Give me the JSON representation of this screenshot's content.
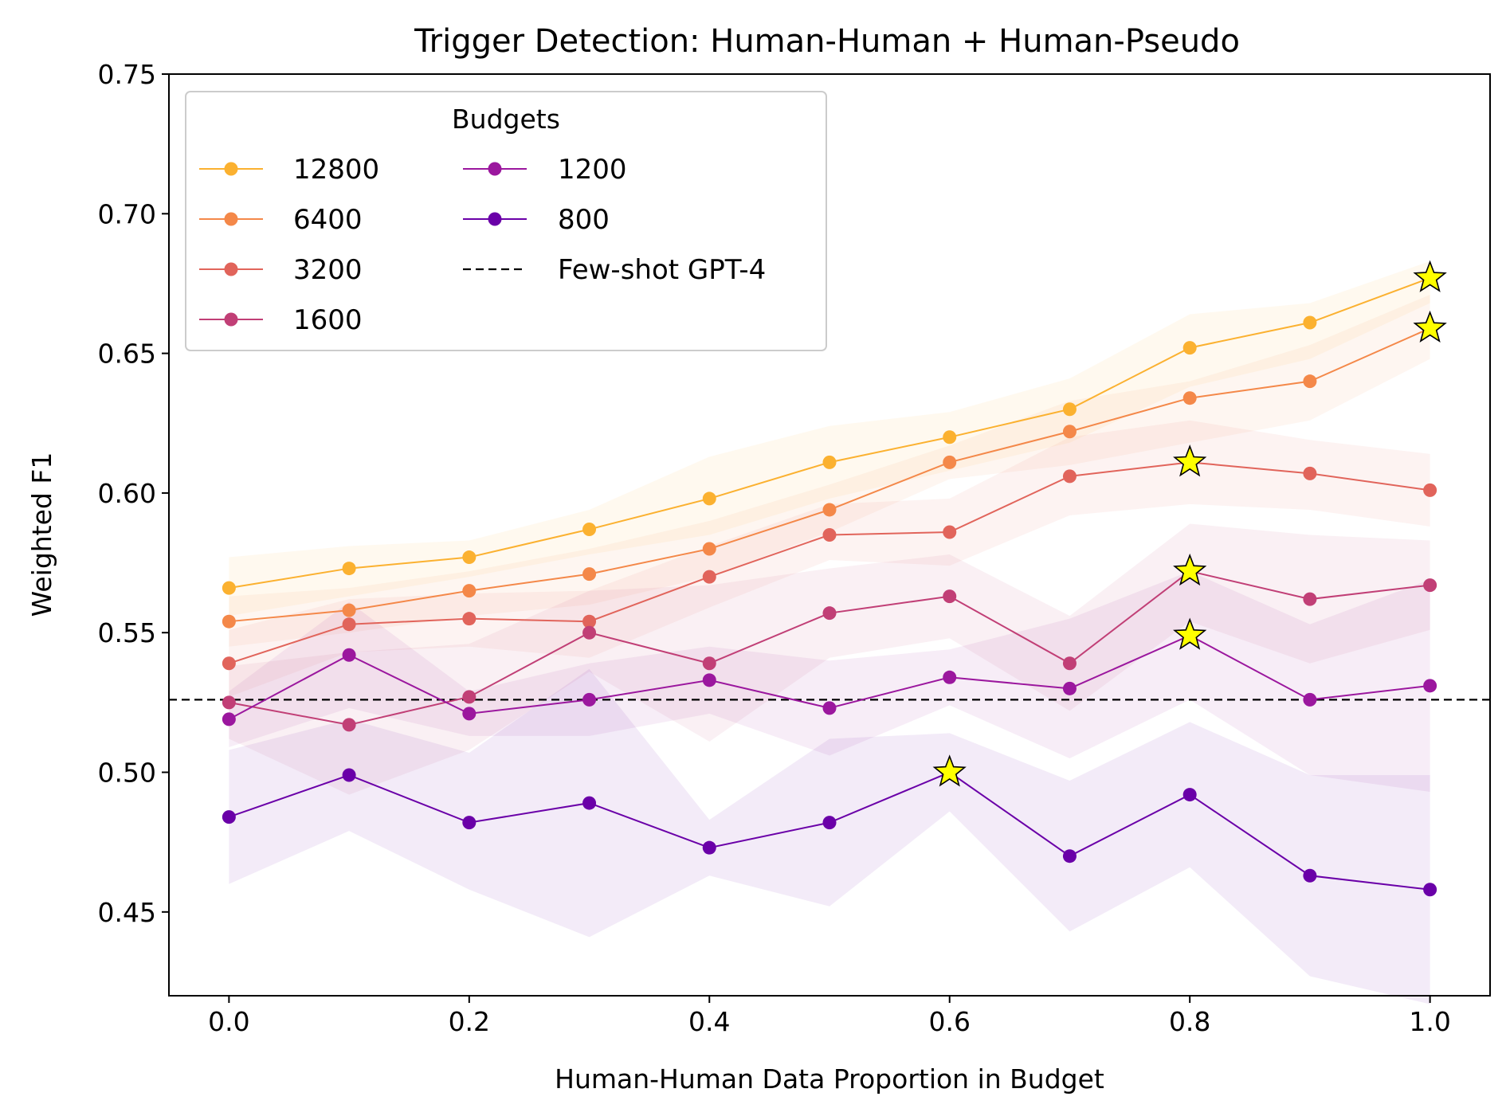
{
  "chart_data": {
    "type": "line",
    "title": "Trigger Detection: Human-Human + Human-Pseudo",
    "xlabel": "Human-Human Data Proportion in Budget",
    "ylabel": "Weighted F1",
    "xlim": [
      -0.05,
      1.05
    ],
    "ylim": [
      0.42,
      0.75
    ],
    "x_ticks": [
      0.0,
      0.2,
      0.4,
      0.6,
      0.8,
      1.0
    ],
    "x_tick_labels": [
      "0.0",
      "0.2",
      "0.4",
      "0.6",
      "0.8",
      "1.0"
    ],
    "y_ticks": [
      0.45,
      0.5,
      0.55,
      0.6,
      0.65,
      0.7,
      0.75
    ],
    "y_tick_labels": [
      "0.45",
      "0.50",
      "0.55",
      "0.60",
      "0.65",
      "0.70",
      "0.75"
    ],
    "grid": false,
    "x": [
      0.0,
      0.1,
      0.2,
      0.3,
      0.4,
      0.5,
      0.6,
      0.7,
      0.8,
      0.9,
      1.0
    ],
    "series": [
      {
        "name": "12800",
        "color": "#fbb130",
        "values": [
          0.566,
          0.573,
          0.577,
          0.587,
          0.598,
          0.611,
          0.62,
          0.63,
          0.652,
          0.661,
          0.677
        ],
        "lower": [
          0.556,
          0.563,
          0.57,
          0.578,
          0.585,
          0.598,
          0.608,
          0.618,
          0.638,
          0.648,
          0.668
        ],
        "upper": [
          0.577,
          0.581,
          0.583,
          0.594,
          0.613,
          0.624,
          0.629,
          0.641,
          0.664,
          0.668,
          0.683
        ],
        "best_index": 10
      },
      {
        "name": "6400",
        "color": "#f48849",
        "values": [
          0.554,
          0.558,
          0.565,
          0.571,
          0.58,
          0.594,
          0.611,
          0.622,
          0.634,
          0.64,
          0.659
        ],
        "lower": [
          0.545,
          0.55,
          0.556,
          0.56,
          0.57,
          0.586,
          0.605,
          0.61,
          0.618,
          0.626,
          0.648
        ],
        "upper": [
          0.563,
          0.566,
          0.572,
          0.58,
          0.59,
          0.603,
          0.617,
          0.633,
          0.64,
          0.653,
          0.671
        ],
        "best_index": 10
      },
      {
        "name": "3200",
        "color": "#e1645b",
        "values": [
          0.539,
          0.553,
          0.555,
          0.554,
          0.57,
          0.585,
          0.586,
          0.606,
          0.611,
          0.607,
          0.601
        ],
        "lower": [
          0.527,
          0.543,
          0.545,
          0.541,
          0.559,
          0.576,
          0.574,
          0.592,
          0.596,
          0.594,
          0.588
        ],
        "upper": [
          0.551,
          0.562,
          0.564,
          0.565,
          0.581,
          0.596,
          0.598,
          0.62,
          0.626,
          0.619,
          0.614
        ],
        "best_index": 8
      },
      {
        "name": "1600",
        "color": "#c13f76",
        "values": [
          0.525,
          0.517,
          0.527,
          0.55,
          0.539,
          0.557,
          0.563,
          0.539,
          0.572,
          0.562,
          0.567
        ],
        "lower": [
          0.512,
          0.492,
          0.508,
          0.536,
          0.511,
          0.541,
          0.548,
          0.522,
          0.554,
          0.539,
          0.551
        ],
        "upper": [
          0.538,
          0.543,
          0.546,
          0.565,
          0.567,
          0.573,
          0.578,
          0.556,
          0.589,
          0.585,
          0.583
        ],
        "best_index": 8
      },
      {
        "name": "1200",
        "color": "#9b179e",
        "values": [
          0.519,
          0.542,
          0.521,
          0.526,
          0.533,
          0.523,
          0.534,
          0.53,
          0.549,
          0.526,
          0.531
        ],
        "lower": [
          0.509,
          0.523,
          0.513,
          0.513,
          0.521,
          0.506,
          0.524,
          0.505,
          0.526,
          0.499,
          0.493
        ],
        "upper": [
          0.529,
          0.561,
          0.529,
          0.539,
          0.545,
          0.54,
          0.544,
          0.555,
          0.572,
          0.553,
          0.569
        ],
        "best_index": 8
      },
      {
        "name": "800",
        "color": "#6a00a8",
        "values": [
          0.484,
          0.499,
          0.482,
          0.489,
          0.473,
          0.482,
          0.5,
          0.47,
          0.492,
          0.463,
          0.458
        ],
        "lower": [
          0.46,
          0.479,
          0.458,
          0.441,
          0.463,
          0.452,
          0.486,
          0.443,
          0.466,
          0.427,
          0.417
        ],
        "upper": [
          0.508,
          0.519,
          0.507,
          0.537,
          0.483,
          0.512,
          0.514,
          0.497,
          0.518,
          0.499,
          0.499
        ],
        "best_index": 6
      }
    ],
    "reference_line": {
      "name": "Few-shot GPT-4",
      "y": 0.526,
      "color": "#000000",
      "style": "dashed"
    },
    "best_marker": {
      "shape": "star",
      "fill": "#ffff00",
      "stroke": "#000000"
    },
    "legend": {
      "title": "Budgets",
      "placement": "upper-left",
      "columns": 2,
      "entries": [
        "12800",
        "6400",
        "3200",
        "1600",
        "1200",
        "800",
        "Few-shot GPT-4"
      ]
    }
  }
}
